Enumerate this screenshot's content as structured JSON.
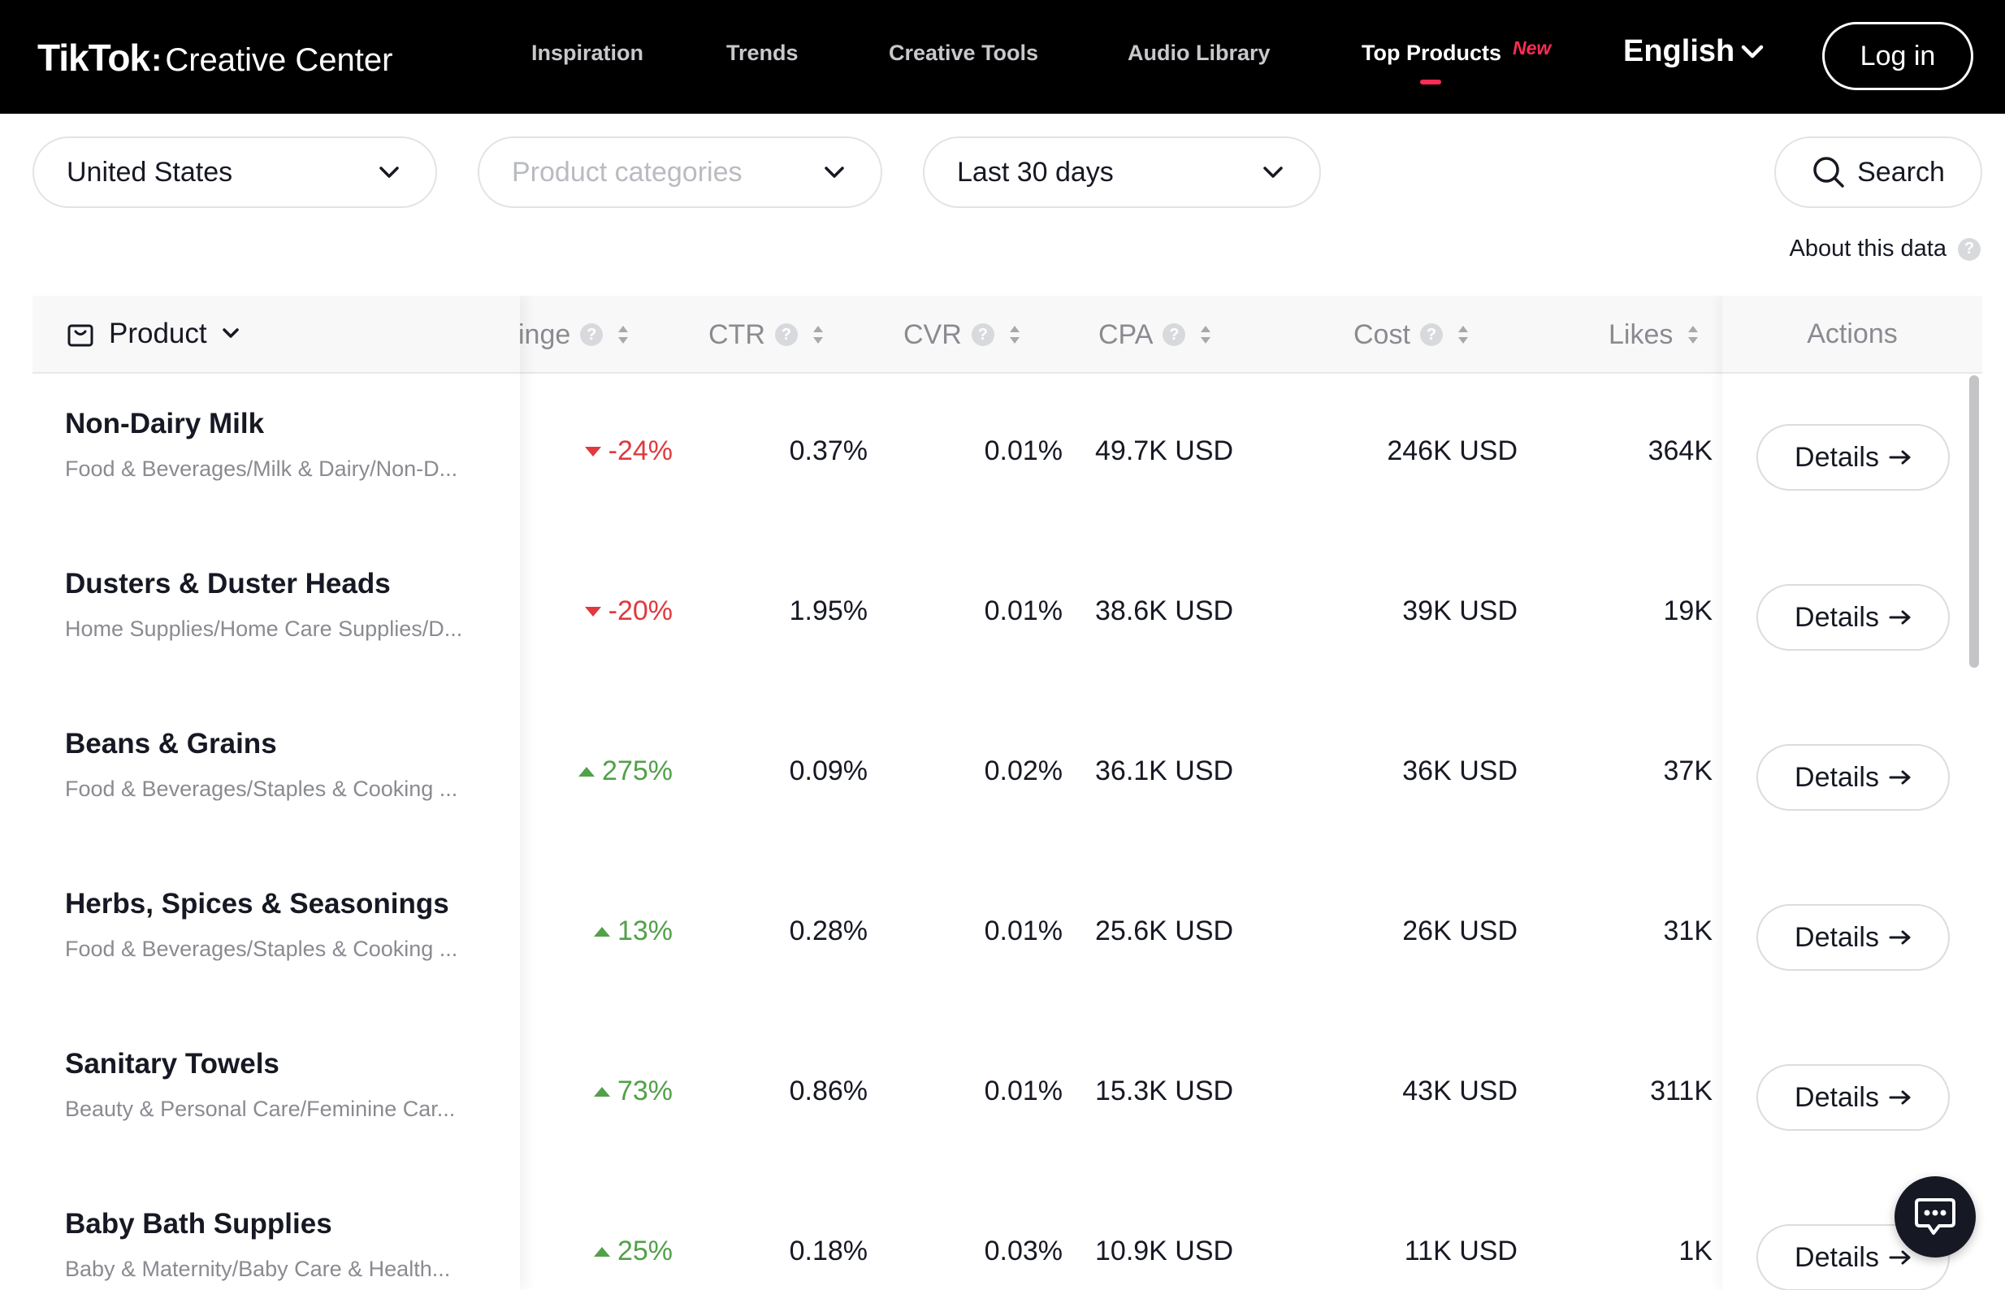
{
  "header": {
    "logo_brand": "TikTok",
    "logo_separator": ":",
    "logo_product": "Creative Center",
    "nav": [
      "Inspiration",
      "Trends",
      "Creative Tools",
      "Audio Library",
      "Top Products"
    ],
    "nav_active": "Top Products",
    "new_badge": "New",
    "language": "English",
    "login_label": "Log in"
  },
  "filters": {
    "region": "United States",
    "categories_placeholder": "Product categories",
    "period": "Last 30 days",
    "search_label": "Search"
  },
  "about_label": "About this data",
  "columns": {
    "product": "Product",
    "change": "inge",
    "ctr": "CTR",
    "cvr": "CVR",
    "cpa": "CPA",
    "cost": "Cost",
    "likes": "Likes",
    "actions": "Actions"
  },
  "rows": [
    {
      "name": "Non-Dairy Milk",
      "category": "Food & Beverages/Milk & Dairy/Non-D...",
      "change": "-24%",
      "direction": "down",
      "ctr": "0.37%",
      "cvr": "0.01%",
      "cpa": "49.7K USD",
      "cost": "246K USD",
      "likes": "364K"
    },
    {
      "name": "Dusters & Duster Heads",
      "category": "Home Supplies/Home Care Supplies/D...",
      "change": "-20%",
      "direction": "down",
      "ctr": "1.95%",
      "cvr": "0.01%",
      "cpa": "38.6K USD",
      "cost": "39K USD",
      "likes": "19K"
    },
    {
      "name": "Beans & Grains",
      "category": "Food & Beverages/Staples & Cooking ...",
      "change": "275%",
      "direction": "up",
      "ctr": "0.09%",
      "cvr": "0.02%",
      "cpa": "36.1K USD",
      "cost": "36K USD",
      "likes": "37K"
    },
    {
      "name": "Herbs, Spices & Seasonings",
      "category": "Food & Beverages/Staples & Cooking ...",
      "change": "13%",
      "direction": "up",
      "ctr": "0.28%",
      "cvr": "0.01%",
      "cpa": "25.6K USD",
      "cost": "26K USD",
      "likes": "31K"
    },
    {
      "name": "Sanitary Towels",
      "category": "Beauty & Personal Care/Feminine Car...",
      "change": "73%",
      "direction": "up",
      "ctr": "0.86%",
      "cvr": "0.01%",
      "cpa": "15.3K USD",
      "cost": "43K USD",
      "likes": "311K"
    },
    {
      "name": "Baby Bath Supplies",
      "category": "Baby & Maternity/Baby Care & Health...",
      "change": "25%",
      "direction": "up",
      "ctr": "0.18%",
      "cvr": "0.03%",
      "cpa": "10.9K USD",
      "cost": "11K USD",
      "likes": "1K"
    }
  ],
  "details_label": "Details",
  "colors": {
    "accent": "#fe2c55",
    "down": "#e0393e",
    "up": "#53a04a"
  },
  "icons": {
    "chevron": "chevron-down-icon",
    "search": "search-icon",
    "bag": "shopping-bag-icon",
    "help": "question-mark-icon",
    "sort": "sort-icon",
    "arrow": "arrow-right-icon",
    "chat": "chat-icon"
  }
}
